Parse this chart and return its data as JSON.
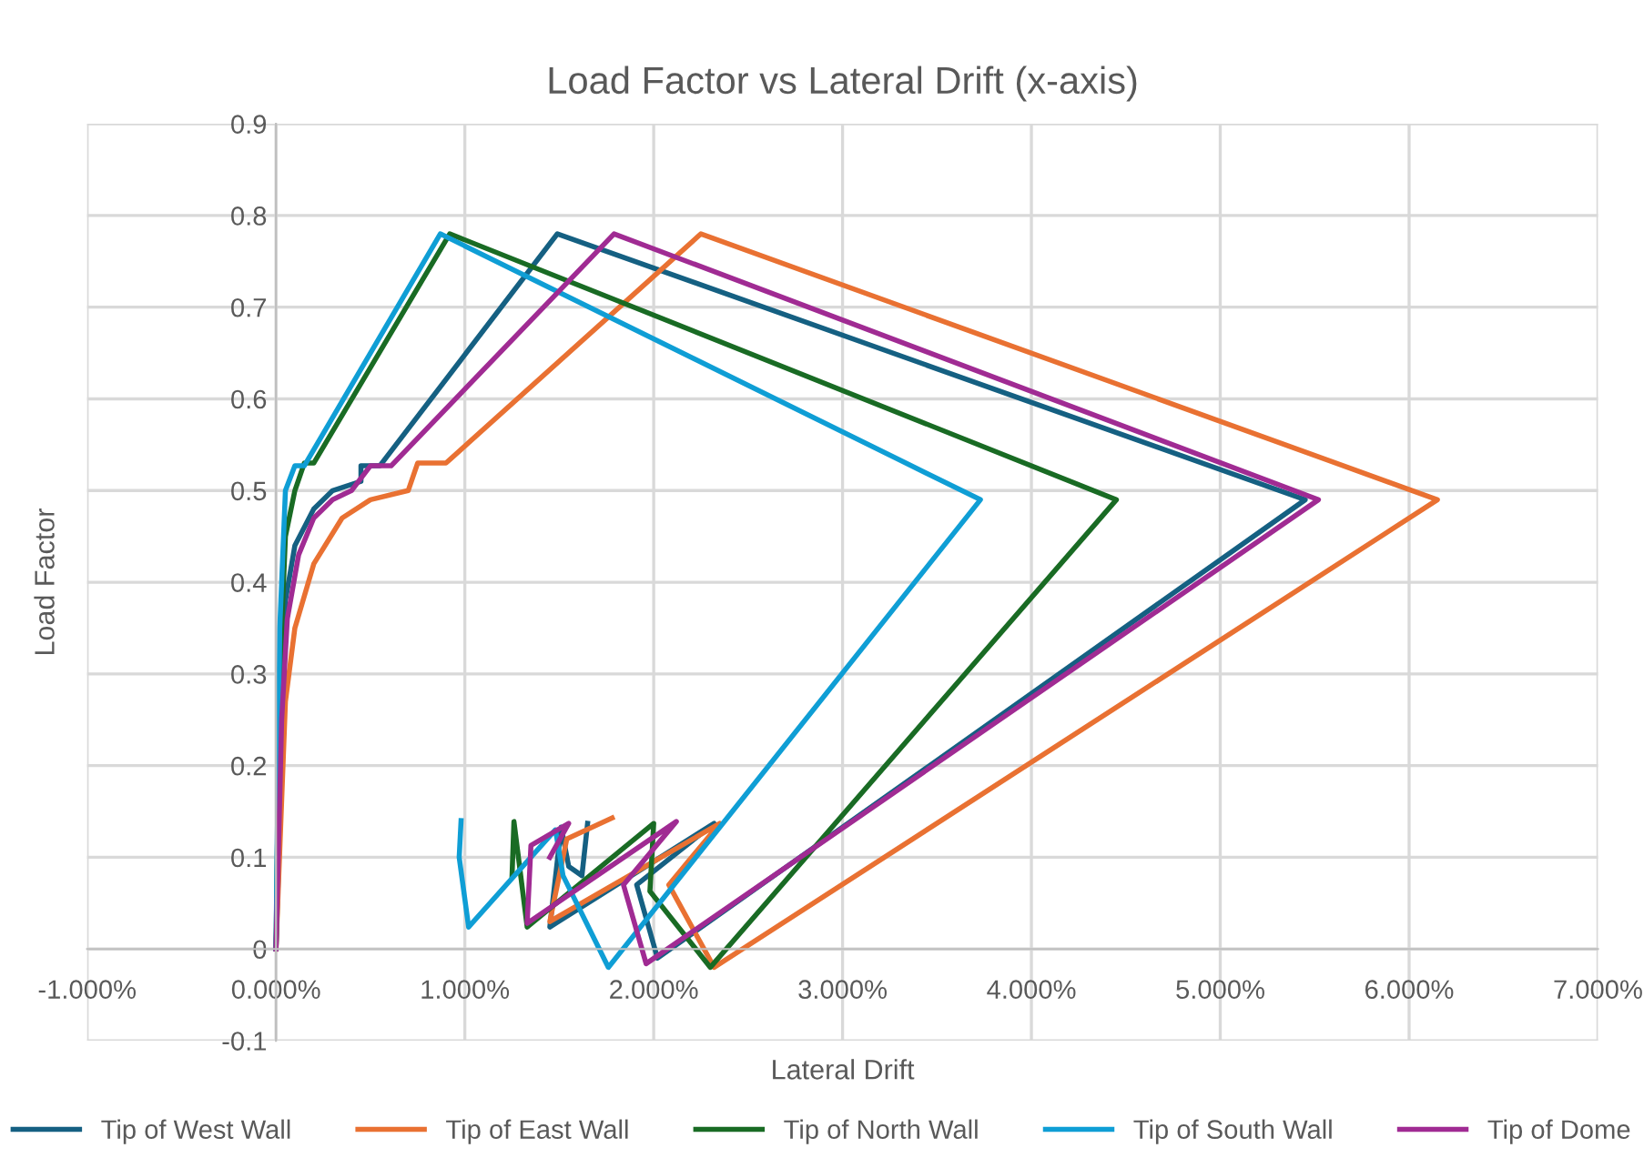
{
  "chart_data": {
    "type": "line",
    "title": "Load Factor vs Lateral Drift (x-axis)",
    "xlabel": "Lateral Drift",
    "ylabel": "Load Factor",
    "xlim": [
      -1,
      7
    ],
    "ylim": [
      -0.1,
      0.9
    ],
    "xticks": [
      {
        "value": -1,
        "label": "-1.000%"
      },
      {
        "value": 0,
        "label": "0.000%"
      },
      {
        "value": 1,
        "label": "1.000%"
      },
      {
        "value": 2,
        "label": "2.000%"
      },
      {
        "value": 3,
        "label": "3.000%"
      },
      {
        "value": 4,
        "label": "4.000%"
      },
      {
        "value": 5,
        "label": "5.000%"
      },
      {
        "value": 6,
        "label": "6.000%"
      },
      {
        "value": 7,
        "label": "7.000%"
      }
    ],
    "yticks": [
      -0.1,
      0,
      0.1,
      0.2,
      0.3,
      0.4,
      0.5,
      0.6,
      0.7,
      0.8,
      0.9
    ],
    "grid": true,
    "legend": "bottom",
    "marker": "none",
    "line_style": "solid",
    "series": [
      {
        "name": "Tip of West Wall",
        "color": "#156082",
        "x": [
          0,
          0.03,
          0.05,
          0.1,
          0.2,
          0.3,
          0.45,
          0.45,
          0.55,
          1.49,
          5.45,
          2.02,
          1.91,
          2.32,
          1.45,
          1.51,
          1.55,
          1.62,
          1.65
        ],
        "values": [
          0,
          0.2,
          0.38,
          0.44,
          0.48,
          0.5,
          0.51,
          0.527,
          0.527,
          0.78,
          0.49,
          -0.01,
          0.07,
          0.137,
          0.024,
          0.133,
          0.09,
          0.08,
          0.137
        ]
      },
      {
        "name": "Tip of East Wall",
        "color": "#e97132",
        "x": [
          0,
          0.05,
          0.1,
          0.2,
          0.35,
          0.5,
          0.7,
          0.75,
          0.9,
          2.25,
          6.15,
          2.32,
          2.08,
          2.35,
          1.45,
          1.54,
          1.78
        ],
        "values": [
          0,
          0.27,
          0.35,
          0.42,
          0.47,
          0.49,
          0.5,
          0.53,
          0.53,
          0.78,
          0.49,
          -0.02,
          0.07,
          0.137,
          0.03,
          0.12,
          0.143
        ]
      },
      {
        "name": "Tip of North Wall",
        "color": "#196b24",
        "x": [
          0,
          0.02,
          0.05,
          0.1,
          0.15,
          0.2,
          0.92,
          4.45,
          2.3,
          1.98,
          2.0,
          1.33,
          1.26,
          1.25
        ],
        "values": [
          0,
          0.3,
          0.45,
          0.5,
          0.53,
          0.53,
          0.78,
          0.49,
          -0.02,
          0.063,
          0.137,
          0.024,
          0.139,
          0.08
        ]
      },
      {
        "name": "Tip of South Wall",
        "color": "#0f9ed5",
        "x": [
          0,
          0.02,
          0.05,
          0.1,
          0.15,
          0.87,
          3.73,
          1.76,
          1.52,
          1.48,
          1.02,
          0.97,
          0.98
        ],
        "values": [
          0,
          0.35,
          0.5,
          0.527,
          0.527,
          0.78,
          0.49,
          -0.02,
          0.08,
          0.13,
          0.024,
          0.1,
          0.14
        ]
      },
      {
        "name": "Tip of Dome",
        "color": "#a02b93",
        "x": [
          0,
          0.03,
          0.06,
          0.12,
          0.2,
          0.3,
          0.4,
          0.5,
          0.61,
          1.79,
          5.52,
          1.96,
          1.84,
          2.12,
          1.33,
          1.35,
          1.55,
          1.45
        ],
        "values": [
          0,
          0.25,
          0.36,
          0.43,
          0.47,
          0.49,
          0.5,
          0.527,
          0.527,
          0.78,
          0.49,
          -0.016,
          0.07,
          0.139,
          0.028,
          0.113,
          0.137,
          0.1
        ]
      }
    ]
  }
}
